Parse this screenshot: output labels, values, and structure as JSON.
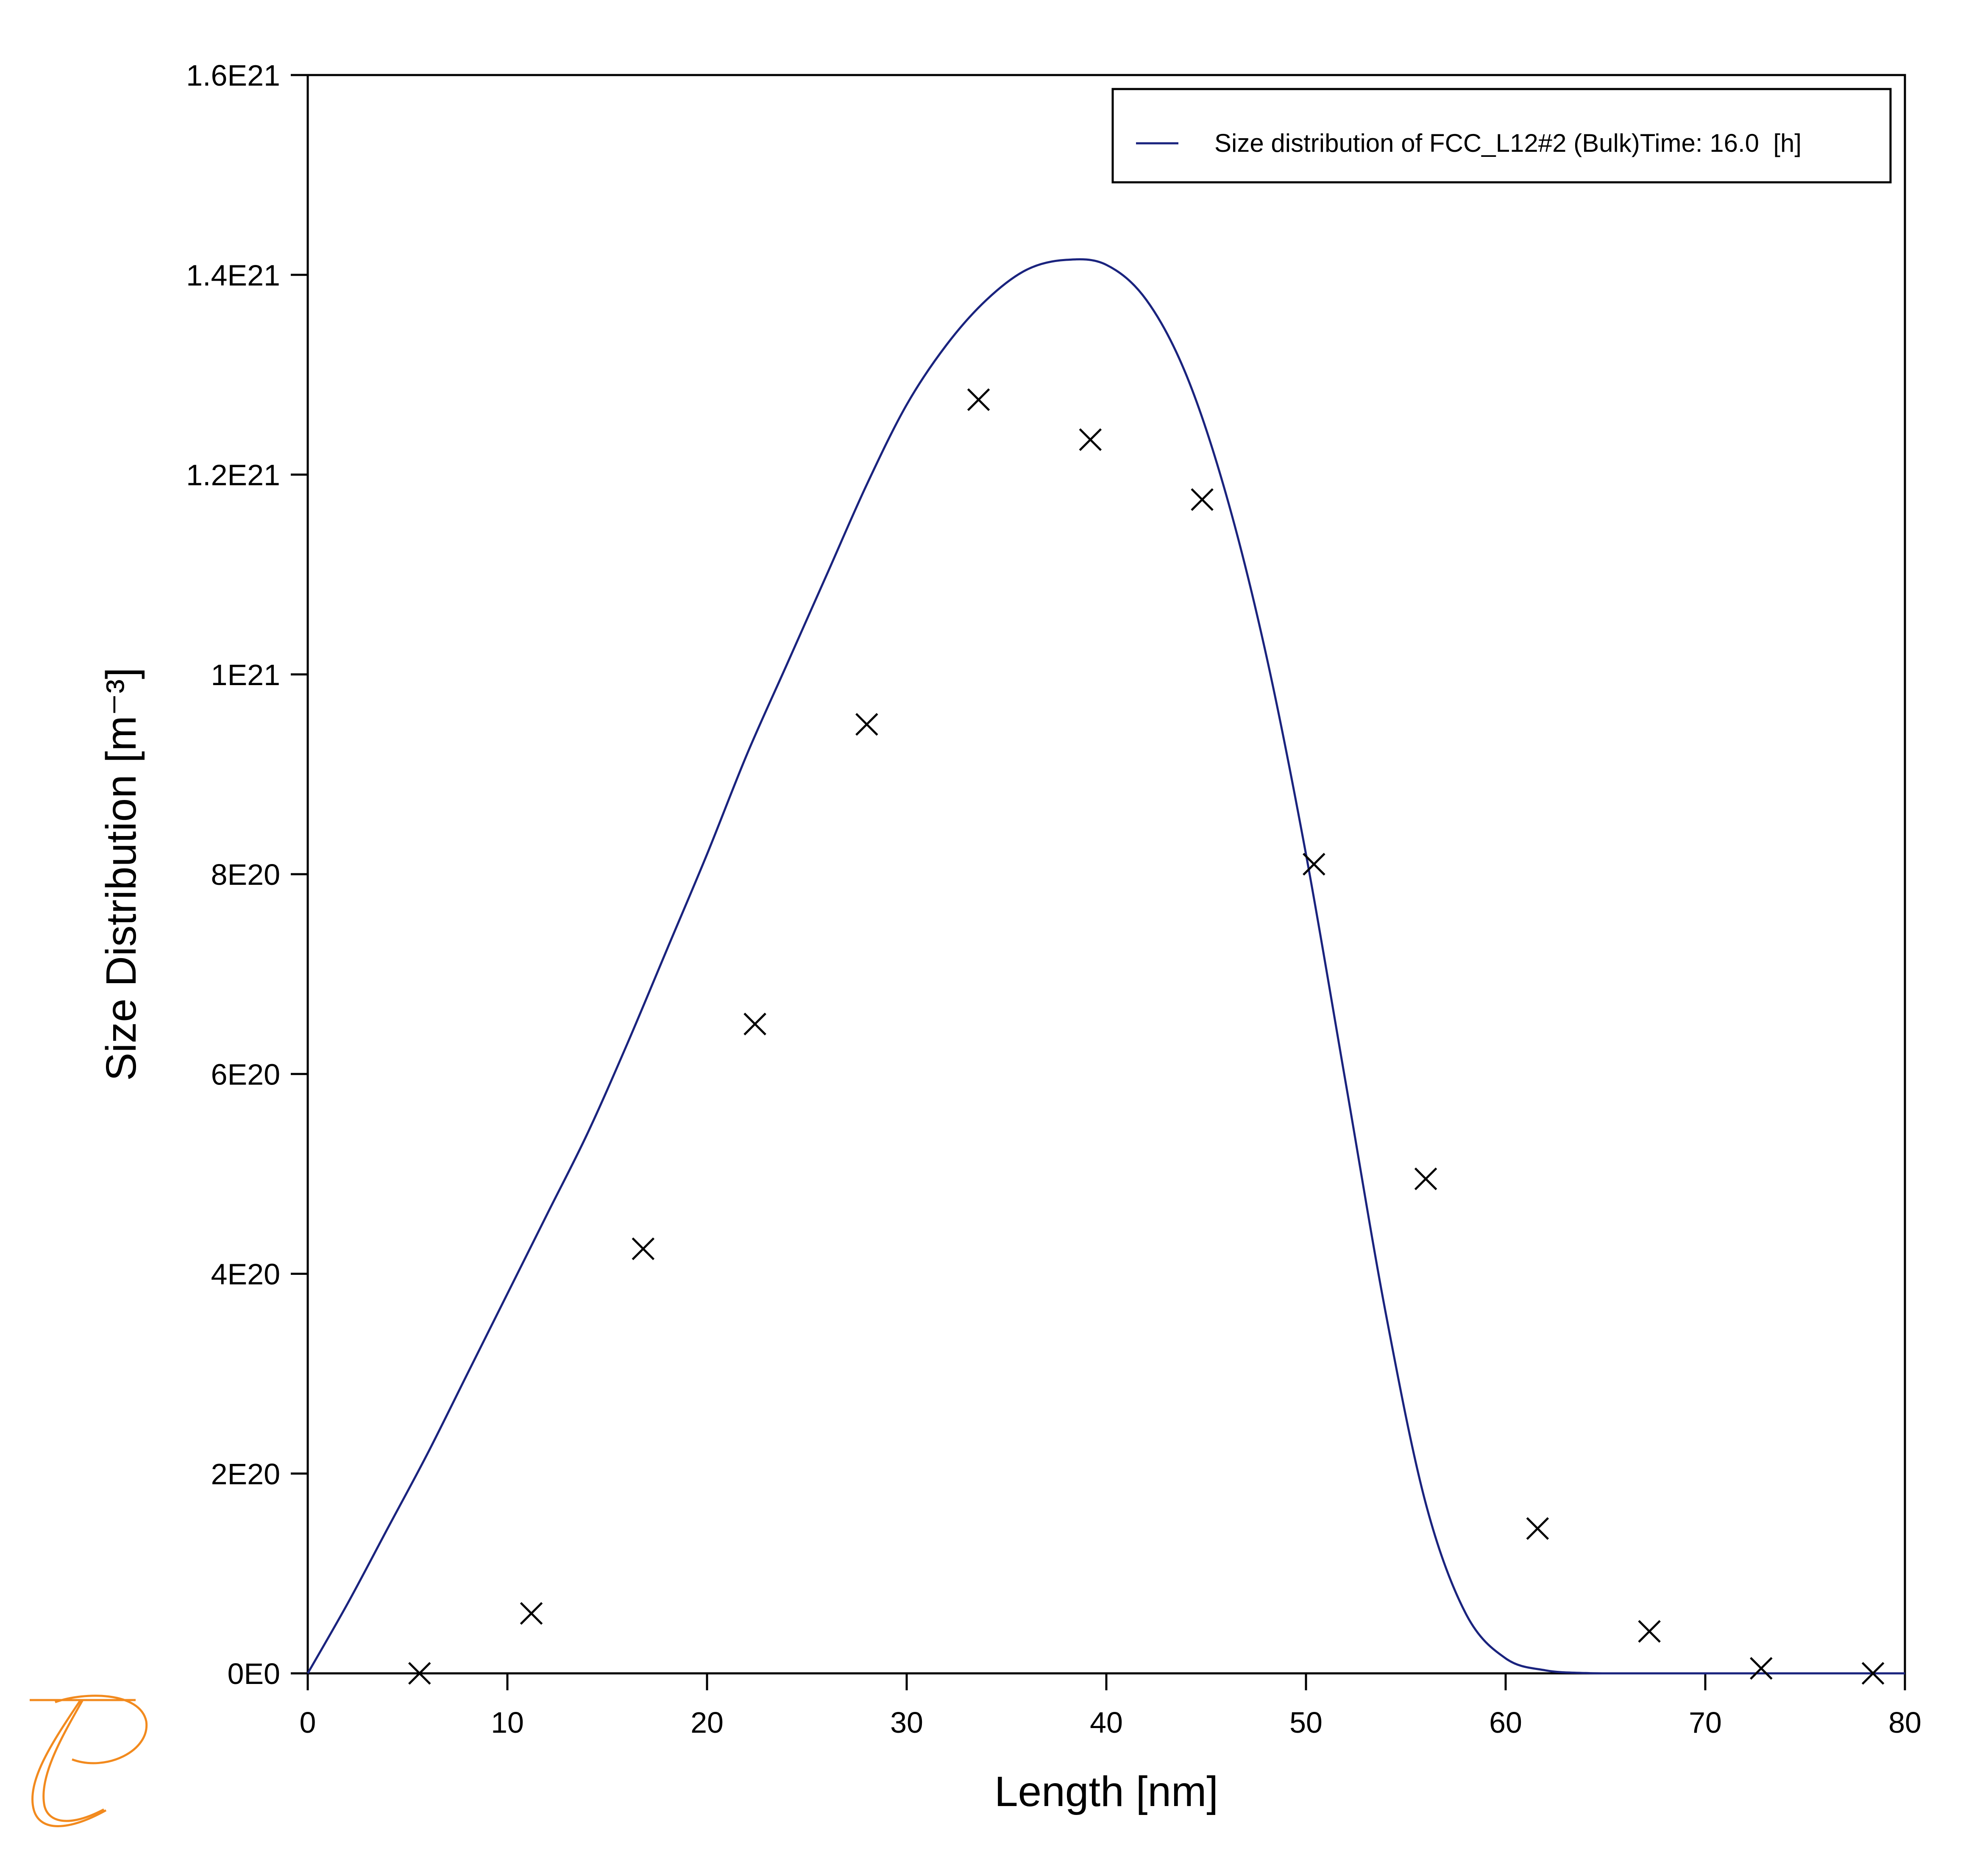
{
  "chart_data": {
    "type": "line",
    "xlabel": "Length [nm]",
    "ylabel": "Size Distribution [m⁻³]",
    "xlim": [
      0,
      80
    ],
    "ylim": [
      0,
      1.6e+21
    ],
    "x_ticks": [
      0,
      10,
      20,
      30,
      40,
      50,
      60,
      70,
      80
    ],
    "x_tick_labels": [
      "0",
      "10",
      "20",
      "30",
      "40",
      "50",
      "60",
      "70",
      "80"
    ],
    "y_ticks": [
      0,
      2e+20,
      4e+20,
      6e+20,
      8e+20,
      1e+21,
      1.2e+21,
      1.4e+21,
      1.6e+21
    ],
    "y_tick_labels": [
      "0E0",
      "2E20",
      "4E20",
      "6E20",
      "8E20",
      "1E21",
      "1.2E21",
      "1.4E21",
      "1.6E21"
    ],
    "grid": false,
    "legend_position": "top-right",
    "series": [
      {
        "name": "Size distribution of FCC_L12#2 (Bulk)Time: 16.0  [h]",
        "kind": "line",
        "color": "#1a237e",
        "x": [
          0,
          2,
          4,
          6,
          8,
          10,
          12,
          14,
          16,
          18,
          20,
          22,
          24,
          26,
          28,
          30,
          32,
          34,
          36,
          38,
          40,
          42,
          44,
          46,
          48,
          50,
          52,
          54,
          56,
          58,
          60,
          62,
          64,
          66,
          68,
          70,
          72,
          74,
          76,
          78,
          80
        ],
        "y": [
          0,
          7e+19,
          1.45e+20,
          2.2e+20,
          3e+20,
          3.8e+20,
          4.6e+20,
          5.4e+20,
          6.3e+20,
          7.25e+20,
          8.2e+20,
          9.2e+20,
          1.01e+21,
          1.1e+21,
          1.19e+21,
          1.27e+21,
          1.33e+21,
          1.375e+21,
          1.405e+21,
          1.415e+21,
          1.41e+21,
          1.375e+21,
          1.3e+21,
          1.18e+21,
          1.02e+21,
          8.2e+20,
          5.9e+20,
          3.6e+20,
          1.7e+20,
          6e+19,
          1.5e+19,
          3e+18,
          3e+17,
          0,
          0,
          0,
          0,
          0,
          0,
          0,
          0
        ]
      },
      {
        "name": "",
        "kind": "scatter",
        "marker": "x",
        "color": "#000000",
        "x": [
          5.6,
          11.2,
          16.8,
          22.4,
          28.0,
          33.6,
          39.2,
          44.8,
          50.4,
          56.0,
          61.6,
          67.2,
          72.8,
          78.4
        ],
        "y": [
          0,
          6e+19,
          4.25e+20,
          6.5e+20,
          9.5e+20,
          1.275e+21,
          1.235e+21,
          1.175e+21,
          8.1e+20,
          4.95e+20,
          1.45e+20,
          4.2e+19,
          5e+18,
          0
        ]
      }
    ]
  },
  "logo": {
    "name": "thermo-calc-logo",
    "color": "#f28a1e"
  }
}
